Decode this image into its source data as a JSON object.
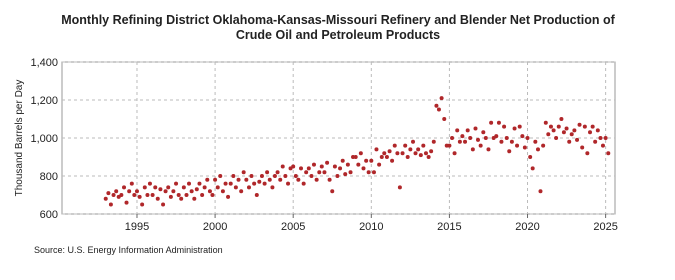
{
  "chart_data": {
    "type": "scatter",
    "title": "Monthly Refining District Oklahoma-Kansas-Missouri Refinery and Blender Net Production of Crude Oil and Petroleum Products",
    "ylabel": "Thousand Barrels per Day",
    "source": "Source: U.S. Energy Information Administration",
    "color": "#b0272a",
    "grid": true,
    "xlim": [
      1990.2,
      2025.6
    ],
    "xticks": [
      1995,
      2000,
      2005,
      2010,
      2015,
      2020,
      2025
    ],
    "ylim": [
      600,
      1400
    ],
    "yticks": [
      600,
      800,
      {
        "value": 1000,
        "label": "1,000"
      },
      {
        "value": 1200,
        "label": "1,200"
      },
      {
        "value": 1400,
        "label": "1,400"
      }
    ],
    "x": [
      1993,
      1993.17,
      1993.33,
      1993.5,
      1993.67,
      1993.83,
      1994,
      1994.17,
      1994.33,
      1994.5,
      1994.67,
      1994.83,
      1995,
      1995.17,
      1995.33,
      1995.5,
      1995.67,
      1995.83,
      1996,
      1996.17,
      1996.33,
      1996.5,
      1996.67,
      1996.83,
      1997,
      1997.17,
      1997.33,
      1997.5,
      1997.67,
      1997.83,
      1998,
      1998.17,
      1998.33,
      1998.5,
      1998.67,
      1998.83,
      1999,
      1999.17,
      1999.33,
      1999.5,
      1999.67,
      1999.83,
      2000,
      2000.17,
      2000.33,
      2000.5,
      2000.67,
      2000.83,
      2001,
      2001.17,
      2001.33,
      2001.5,
      2001.67,
      2001.83,
      2002,
      2002.17,
      2002.33,
      2002.5,
      2002.67,
      2002.83,
      2003,
      2003.17,
      2003.33,
      2003.5,
      2003.67,
      2003.83,
      2004,
      2004.17,
      2004.33,
      2004.5,
      2004.67,
      2004.83,
      2005,
      2005.17,
      2005.33,
      2005.5,
      2005.67,
      2005.83,
      2006,
      2006.17,
      2006.33,
      2006.5,
      2006.67,
      2006.83,
      2007,
      2007.17,
      2007.33,
      2007.5,
      2007.67,
      2007.83,
      2008,
      2008.17,
      2008.33,
      2008.5,
      2008.67,
      2008.83,
      2009,
      2009.17,
      2009.33,
      2009.5,
      2009.67,
      2009.83,
      2010,
      2010.17,
      2010.33,
      2010.5,
      2010.67,
      2010.83,
      2011,
      2011.17,
      2011.33,
      2011.5,
      2011.67,
      2011.83,
      2012,
      2012.17,
      2012.33,
      2012.5,
      2012.67,
      2012.83,
      2013,
      2013.17,
      2013.33,
      2013.5,
      2013.67,
      2013.83,
      2014,
      2014.17,
      2014.33,
      2014.5,
      2014.67,
      2014.83,
      2015,
      2015.17,
      2015.33,
      2015.5,
      2015.67,
      2015.83,
      2016,
      2016.17,
      2016.33,
      2016.5,
      2016.67,
      2016.83,
      2017,
      2017.17,
      2017.33,
      2017.5,
      2017.67,
      2017.83,
      2018,
      2018.17,
      2018.33,
      2018.5,
      2018.67,
      2018.83,
      2019,
      2019.17,
      2019.33,
      2019.5,
      2019.67,
      2019.83,
      2020,
      2020.17,
      2020.33,
      2020.5,
      2020.67,
      2020.83,
      2021,
      2021.17,
      2021.33,
      2021.5,
      2021.67,
      2021.83,
      2022,
      2022.17,
      2022.33,
      2022.5,
      2022.67,
      2022.83,
      2023,
      2023.17,
      2023.33,
      2023.5,
      2023.67,
      2023.83,
      2024,
      2024.17,
      2024.33,
      2024.5,
      2024.67,
      2024.83,
      2025,
      2025.17
    ],
    "values": [
      680,
      710,
      650,
      700,
      720,
      690,
      700,
      740,
      660,
      720,
      760,
      700,
      720,
      690,
      650,
      740,
      700,
      760,
      700,
      740,
      680,
      730,
      650,
      720,
      740,
      690,
      720,
      760,
      700,
      680,
      740,
      700,
      760,
      720,
      680,
      730,
      760,
      700,
      740,
      780,
      720,
      700,
      780,
      740,
      800,
      720,
      760,
      690,
      760,
      800,
      740,
      780,
      720,
      820,
      780,
      740,
      800,
      760,
      700,
      770,
      800,
      760,
      820,
      780,
      740,
      800,
      820,
      780,
      850,
      800,
      760,
      840,
      850,
      800,
      780,
      840,
      760,
      820,
      840,
      800,
      860,
      780,
      820,
      850,
      820,
      870,
      780,
      720,
      850,
      800,
      840,
      880,
      810,
      860,
      820,
      900,
      900,
      860,
      920,
      840,
      880,
      820,
      880,
      820,
      940,
      860,
      900,
      920,
      900,
      930,
      880,
      960,
      920,
      740,
      920,
      960,
      900,
      940,
      980,
      920,
      940,
      910,
      960,
      920,
      900,
      930,
      980,
      1170,
      1150,
      1210,
      1100,
      960,
      960,
      1000,
      920,
      1040,
      980,
      1010,
      980,
      1040,
      1000,
      940,
      1050,
      990,
      960,
      1030,
      1000,
      940,
      1080,
      1000,
      1010,
      1080,
      980,
      1060,
      1000,
      930,
      980,
      1050,
      960,
      1060,
      1010,
      950,
      1000,
      900,
      840,
      980,
      940,
      720,
      960,
      1080,
      1020,
      1060,
      1040,
      1000,
      1060,
      1100,
      1030,
      1050,
      980,
      1020,
      1040,
      990,
      1070,
      950,
      1060,
      920,
      1030,
      1060,
      980,
      1040,
      1000,
      960,
      1000,
      920
    ]
  }
}
